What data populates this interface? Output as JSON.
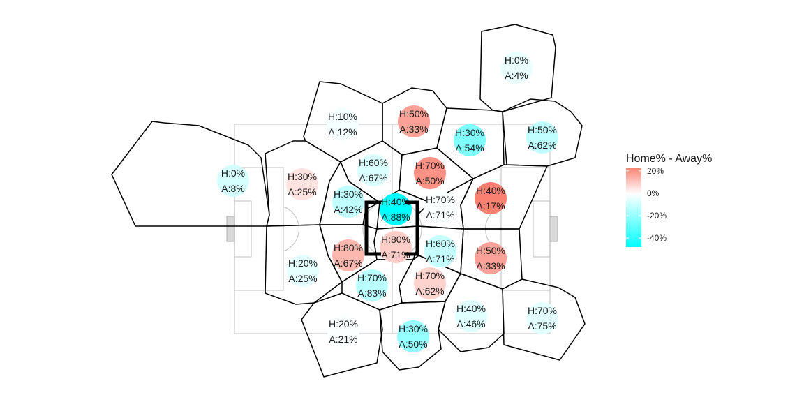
{
  "chart_data": {
    "type": "voronoi-heatmap",
    "title": "",
    "legend": {
      "title": "Home% - Away%",
      "placement": "right",
      "ticks": [
        {
          "value": 20,
          "label": "20%"
        },
        {
          "value": 0,
          "label": "0%"
        },
        {
          "value": -20,
          "label": "-20%"
        },
        {
          "value": -40,
          "label": "-40%"
        }
      ],
      "range": [
        -48,
        23
      ],
      "colors": {
        "high": "#fa8072",
        "mid": "#ffffff",
        "low": "#00ffff"
      }
    },
    "cells": [
      {
        "id": "c01",
        "home_label": "H:0%",
        "away_label": "A:4%",
        "home": 0,
        "away": 4
      },
      {
        "id": "c02",
        "home_label": "H:10%",
        "away_label": "A:12%",
        "home": 10,
        "away": 12
      },
      {
        "id": "c03",
        "home_label": "H:50%",
        "away_label": "A:33%",
        "home": 50,
        "away": 33
      },
      {
        "id": "c04",
        "home_label": "H:30%",
        "away_label": "A:54%",
        "home": 30,
        "away": 54
      },
      {
        "id": "c05",
        "home_label": "H:50%",
        "away_label": "A:62%",
        "home": 50,
        "away": 62
      },
      {
        "id": "c06",
        "home_label": "H:0%",
        "away_label": "A:8%",
        "home": 0,
        "away": 8
      },
      {
        "id": "c07",
        "home_label": "H:30%",
        "away_label": "A:25%",
        "home": 30,
        "away": 25
      },
      {
        "id": "c08",
        "home_label": "H:60%",
        "away_label": "A:67%",
        "home": 60,
        "away": 67
      },
      {
        "id": "c09",
        "home_label": "H:70%",
        "away_label": "A:50%",
        "home": 70,
        "away": 50
      },
      {
        "id": "c10",
        "home_label": "H:30%",
        "away_label": "A:42%",
        "home": 30,
        "away": 42
      },
      {
        "id": "c11",
        "home_label": "H:40%",
        "away_label": "A:88%",
        "home": 40,
        "away": 88
      },
      {
        "id": "c12",
        "home_label": "H:70%",
        "away_label": "A:71%",
        "home": 70,
        "away": 71
      },
      {
        "id": "c13",
        "home_label": "H:40%",
        "away_label": "A:17%",
        "home": 40,
        "away": 17
      },
      {
        "id": "c14",
        "home_label": "H:80%",
        "away_label": "A:67%",
        "home": 80,
        "away": 67
      },
      {
        "id": "c15",
        "home_label": "H:80%",
        "away_label": "A:71%",
        "home": 80,
        "away": 71
      },
      {
        "id": "c16",
        "home_label": "H:60%",
        "away_label": "A:71%",
        "home": 60,
        "away": 71
      },
      {
        "id": "c17",
        "home_label": "H:50%",
        "away_label": "A:33%",
        "home": 50,
        "away": 33
      },
      {
        "id": "c18",
        "home_label": "H:20%",
        "away_label": "A:25%",
        "home": 20,
        "away": 25
      },
      {
        "id": "c19",
        "home_label": "H:70%",
        "away_label": "A:83%",
        "home": 70,
        "away": 83
      },
      {
        "id": "c20",
        "home_label": "H:70%",
        "away_label": "A:62%",
        "home": 70,
        "away": 62
      },
      {
        "id": "c21",
        "home_label": "H:40%",
        "away_label": "A:46%",
        "home": 40,
        "away": 46
      },
      {
        "id": "c22",
        "home_label": "H:70%",
        "away_label": "A:75%",
        "home": 70,
        "away": 75
      },
      {
        "id": "c23",
        "home_label": "H:20%",
        "away_label": "A:21%",
        "home": 20,
        "away": 21
      },
      {
        "id": "c24",
        "home_label": "H:30%",
        "away_label": "A:50%",
        "home": 30,
        "away": 50
      }
    ]
  }
}
